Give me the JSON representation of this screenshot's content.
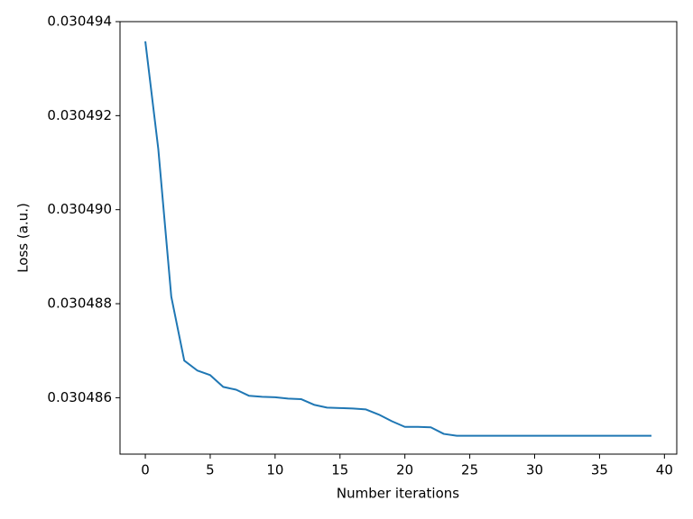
{
  "chart_data": {
    "type": "line",
    "x_label": "Number iterations",
    "y_label": "Loss (a.u.)",
    "x": [
      0,
      1,
      2,
      3,
      4,
      5,
      6,
      7,
      8,
      9,
      10,
      11,
      12,
      13,
      14,
      15,
      16,
      17,
      18,
      19,
      20,
      21,
      22,
      23,
      24,
      25,
      26,
      27,
      28,
      29,
      30,
      31,
      32,
      33,
      34,
      35,
      36,
      37,
      38,
      39
    ],
    "values": [
      0.03049358,
      0.03049129,
      0.03048815,
      0.03048679,
      0.03048658,
      0.03048648,
      0.03048623,
      0.03048617,
      0.03048604,
      0.03048602,
      0.03048601,
      0.03048598,
      0.03048597,
      0.03048585,
      0.03048579,
      0.03048578,
      0.03048577,
      0.03048575,
      0.03048564,
      0.0304855,
      0.03048538,
      0.03048538,
      0.03048537,
      0.03048523,
      0.03048519,
      0.03048519,
      0.03048519,
      0.03048519,
      0.03048519,
      0.03048519,
      0.03048519,
      0.03048519,
      0.03048519,
      0.03048519,
      0.03048519,
      0.03048519,
      0.03048519,
      0.03048519,
      0.03048519,
      0.03048519
    ],
    "color": "#1f77b4",
    "xlim": [
      -1.95,
      40.95
    ],
    "xticks": [
      0,
      5,
      10,
      15,
      20,
      25,
      30,
      35,
      40
    ],
    "ylim": [
      0.0304848,
      0.030494
    ],
    "yticks": [
      0.030486,
      0.030488,
      {
        "value": 0.03049,
        "label": "0.030490"
      },
      0.030492,
      0.030494
    ],
    "grid": false
  }
}
